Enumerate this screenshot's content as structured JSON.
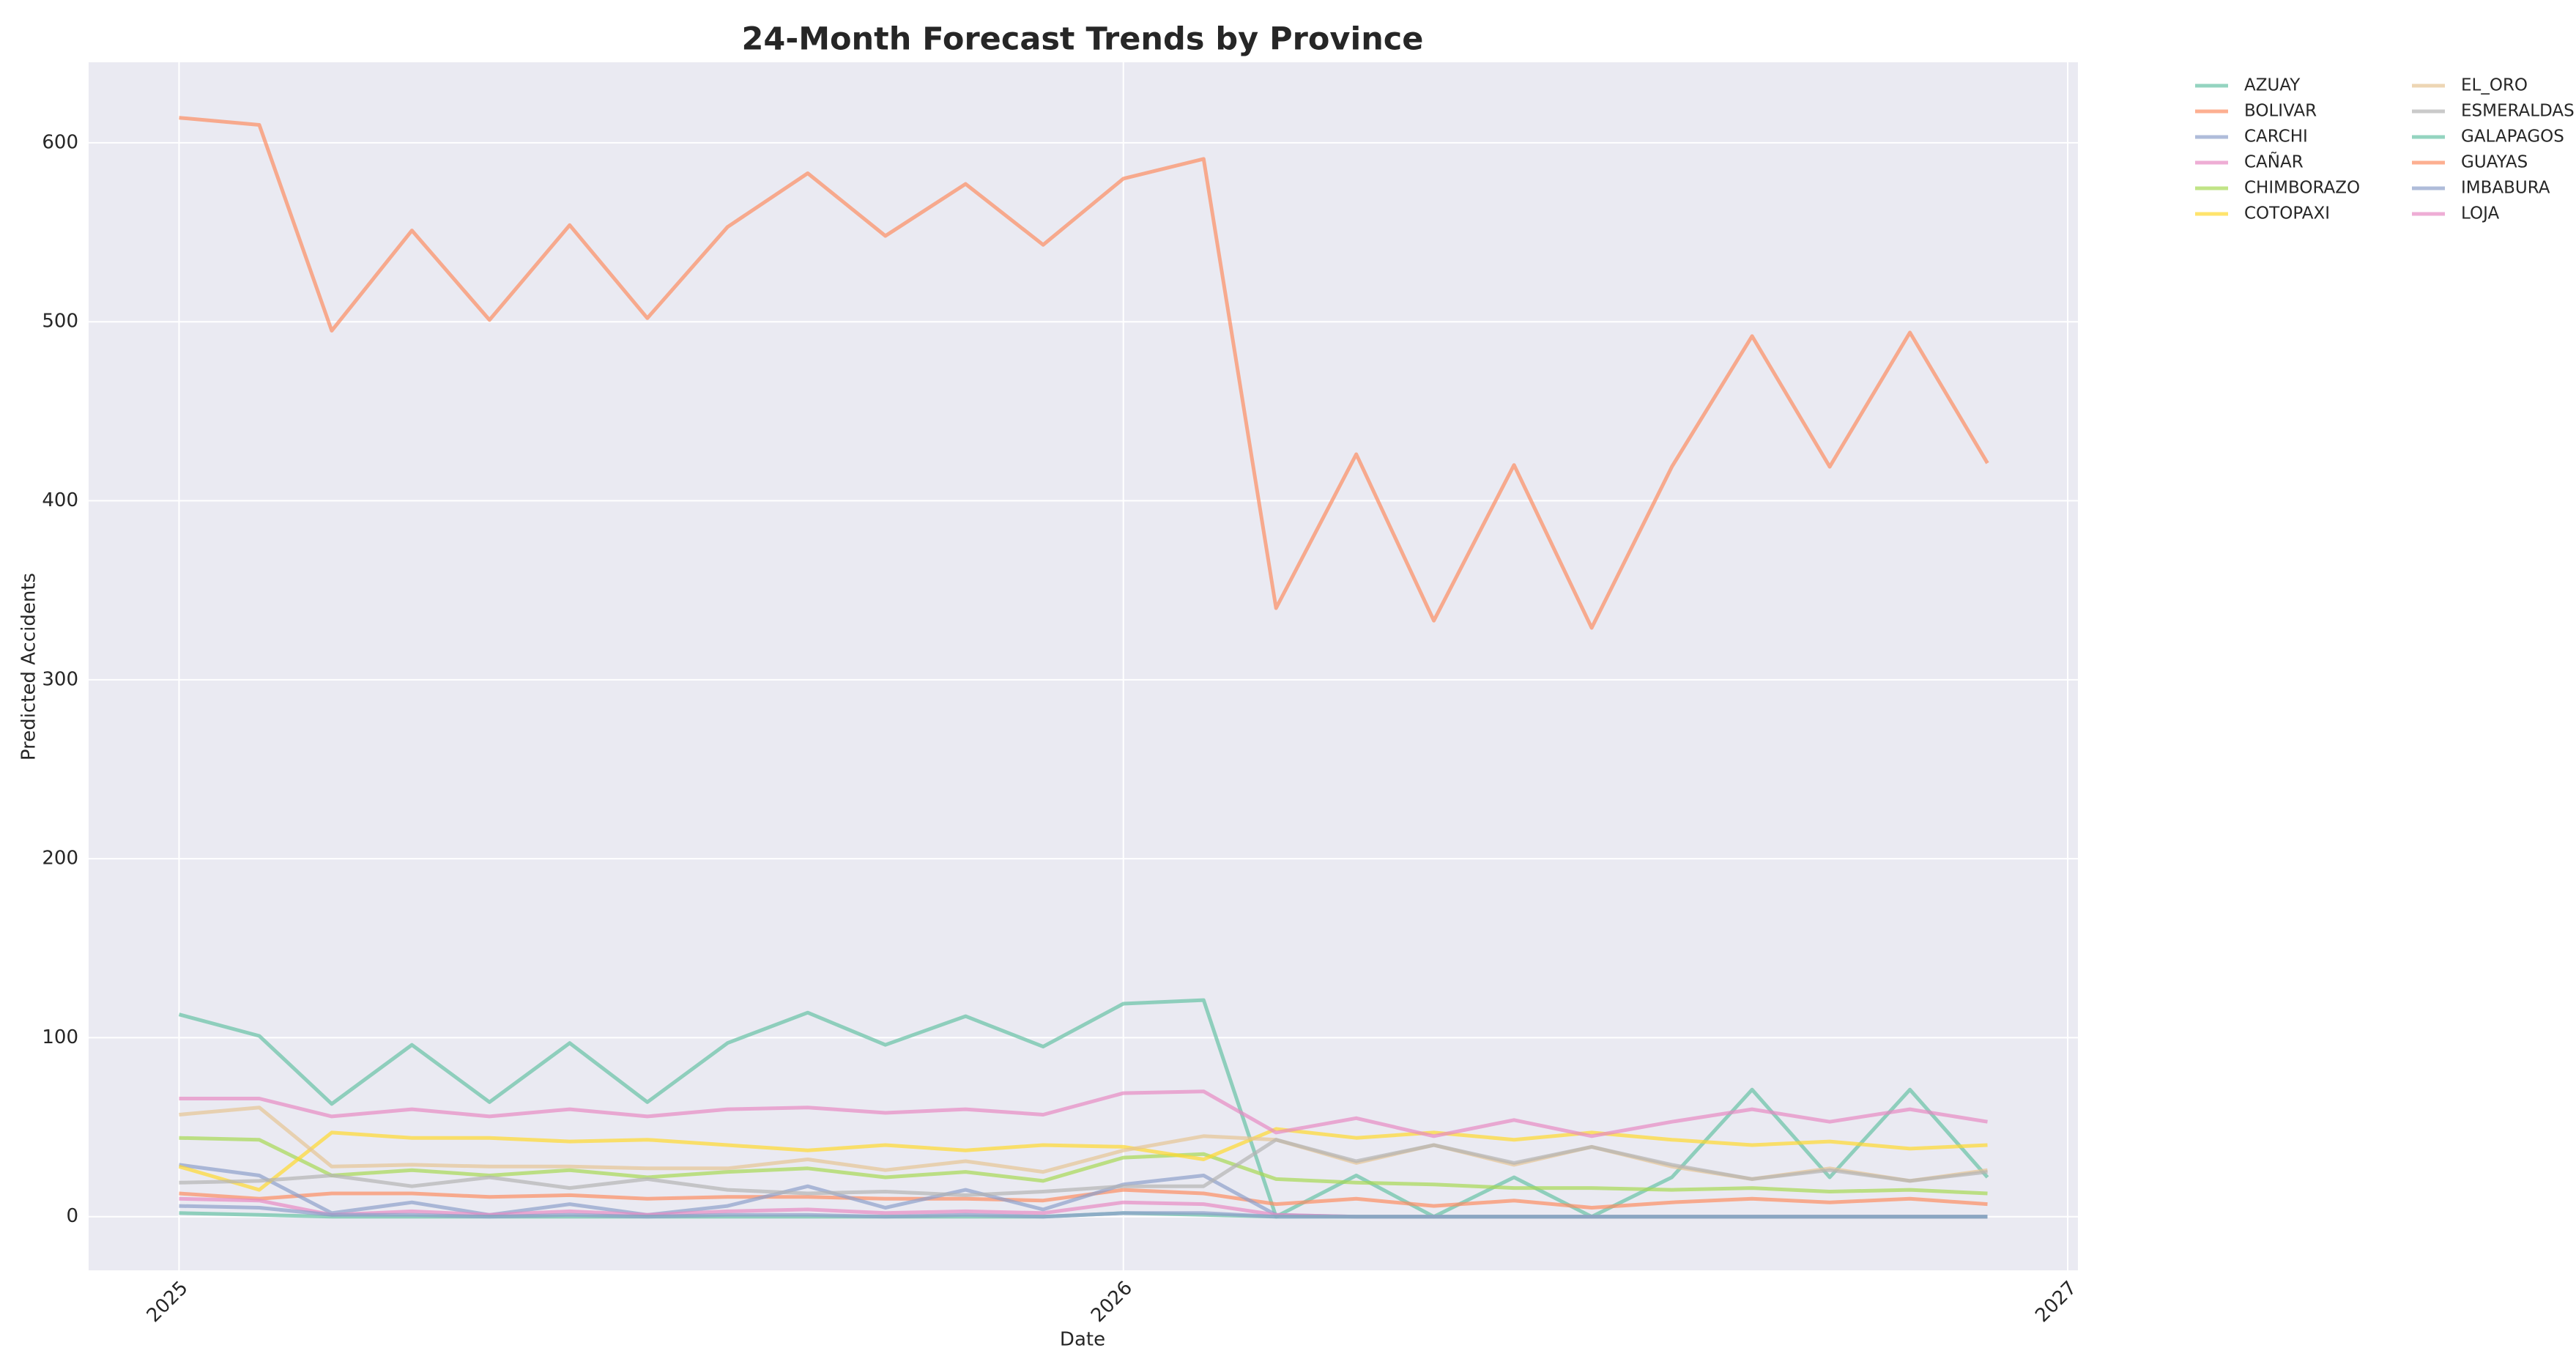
{
  "chart_data": {
    "type": "line",
    "title": "24-Month Forecast Trends by Province",
    "x_label": "Date",
    "y_label": "Predicted Accidents",
    "x": [
      "2025-01",
      "2025-02",
      "2025-03",
      "2025-04",
      "2025-05",
      "2025-06",
      "2025-07",
      "2025-08",
      "2025-09",
      "2025-10",
      "2025-11",
      "2025-12",
      "2026-01",
      "2026-02",
      "2026-03",
      "2026-04",
      "2026-05",
      "2026-06",
      "2026-07",
      "2026-08",
      "2026-09",
      "2026-10",
      "2026-11",
      "2026-12"
    ],
    "xticks": [
      "2025",
      "2026",
      "2027"
    ],
    "ylim": [
      -30,
      645
    ],
    "yticks": [
      0,
      100,
      200,
      300,
      400,
      500,
      600
    ],
    "grid": true,
    "legend": "outside-right",
    "series": [
      {
        "name": "AZUAY",
        "color": "#66c2a5",
        "values": [
          113,
          101,
          63,
          96,
          64,
          97,
          64,
          97,
          114,
          96,
          112,
          95,
          119,
          121,
          0,
          23,
          0,
          22,
          0,
          22,
          71,
          22,
          71,
          22
        ]
      },
      {
        "name": "BOLIVAR",
        "color": "#fc8d62",
        "values": [
          13,
          10,
          13,
          13,
          11,
          12,
          10,
          11,
          11,
          10,
          10,
          9,
          15,
          13,
          7,
          10,
          6,
          9,
          5,
          8,
          10,
          8,
          10,
          7
        ]
      },
      {
        "name": "CARCHI",
        "color": "#8da0cb",
        "values": [
          29,
          23,
          2,
          8,
          1,
          7,
          1,
          6,
          17,
          5,
          15,
          4,
          18,
          23,
          1,
          0,
          0,
          0,
          0,
          0,
          0,
          0,
          0,
          0
        ]
      },
      {
        "name": "CAÑAR",
        "color": "#e78ac3",
        "values": [
          10,
          9,
          1,
          3,
          1,
          3,
          1,
          3,
          4,
          2,
          3,
          2,
          8,
          7,
          1,
          0,
          0,
          0,
          0,
          0,
          0,
          0,
          0,
          0
        ]
      },
      {
        "name": "CHIMBORAZO",
        "color": "#a6d854",
        "values": [
          44,
          43,
          23,
          26,
          23,
          26,
          22,
          25,
          27,
          22,
          25,
          20,
          33,
          35,
          21,
          19,
          18,
          16,
          16,
          15,
          16,
          14,
          15,
          13
        ]
      },
      {
        "name": "COTOPAXI",
        "color": "#ffd92f",
        "values": [
          28,
          15,
          47,
          44,
          44,
          42,
          43,
          40,
          37,
          40,
          37,
          40,
          39,
          32,
          49,
          44,
          47,
          43,
          47,
          43,
          40,
          42,
          38,
          40
        ]
      },
      {
        "name": "EL_ORO",
        "color": "#e5c494",
        "values": [
          57,
          61,
          28,
          29,
          28,
          28,
          27,
          27,
          32,
          26,
          31,
          25,
          37,
          45,
          43,
          30,
          40,
          29,
          39,
          28,
          21,
          27,
          20,
          26
        ]
      },
      {
        "name": "ESMERALDAS",
        "color": "#b3b3b3",
        "values": [
          19,
          20,
          23,
          17,
          22,
          16,
          21,
          15,
          13,
          14,
          12,
          14,
          17,
          17,
          43,
          31,
          40,
          30,
          39,
          29,
          21,
          26,
          20,
          25
        ]
      },
      {
        "name": "GALAPAGOS",
        "color": "#66c2a5",
        "values": [
          2,
          1,
          0,
          0,
          0,
          0,
          0,
          0,
          0,
          0,
          0,
          0,
          2,
          1,
          0,
          0,
          0,
          0,
          0,
          0,
          0,
          0,
          0,
          0
        ]
      },
      {
        "name": "GUAYAS",
        "color": "#fc8d62",
        "values": [
          614,
          610,
          495,
          551,
          501,
          554,
          502,
          553,
          583,
          548,
          577,
          543,
          580,
          591,
          340,
          426,
          333,
          420,
          329,
          419,
          492,
          419,
          494,
          421
        ]
      },
      {
        "name": "IMBABURA",
        "color": "#8da0cb",
        "values": [
          6,
          5,
          1,
          1,
          0,
          1,
          0,
          1,
          1,
          0,
          1,
          0,
          2,
          2,
          0,
          0,
          0,
          0,
          0,
          0,
          0,
          0,
          0,
          0
        ]
      },
      {
        "name": "LOJA",
        "color": "#e78ac3",
        "values": [
          66,
          66,
          56,
          60,
          56,
          60,
          56,
          60,
          61,
          58,
          60,
          57,
          69,
          70,
          47,
          55,
          45,
          54,
          45,
          53,
          60,
          53,
          60,
          53
        ]
      }
    ]
  }
}
